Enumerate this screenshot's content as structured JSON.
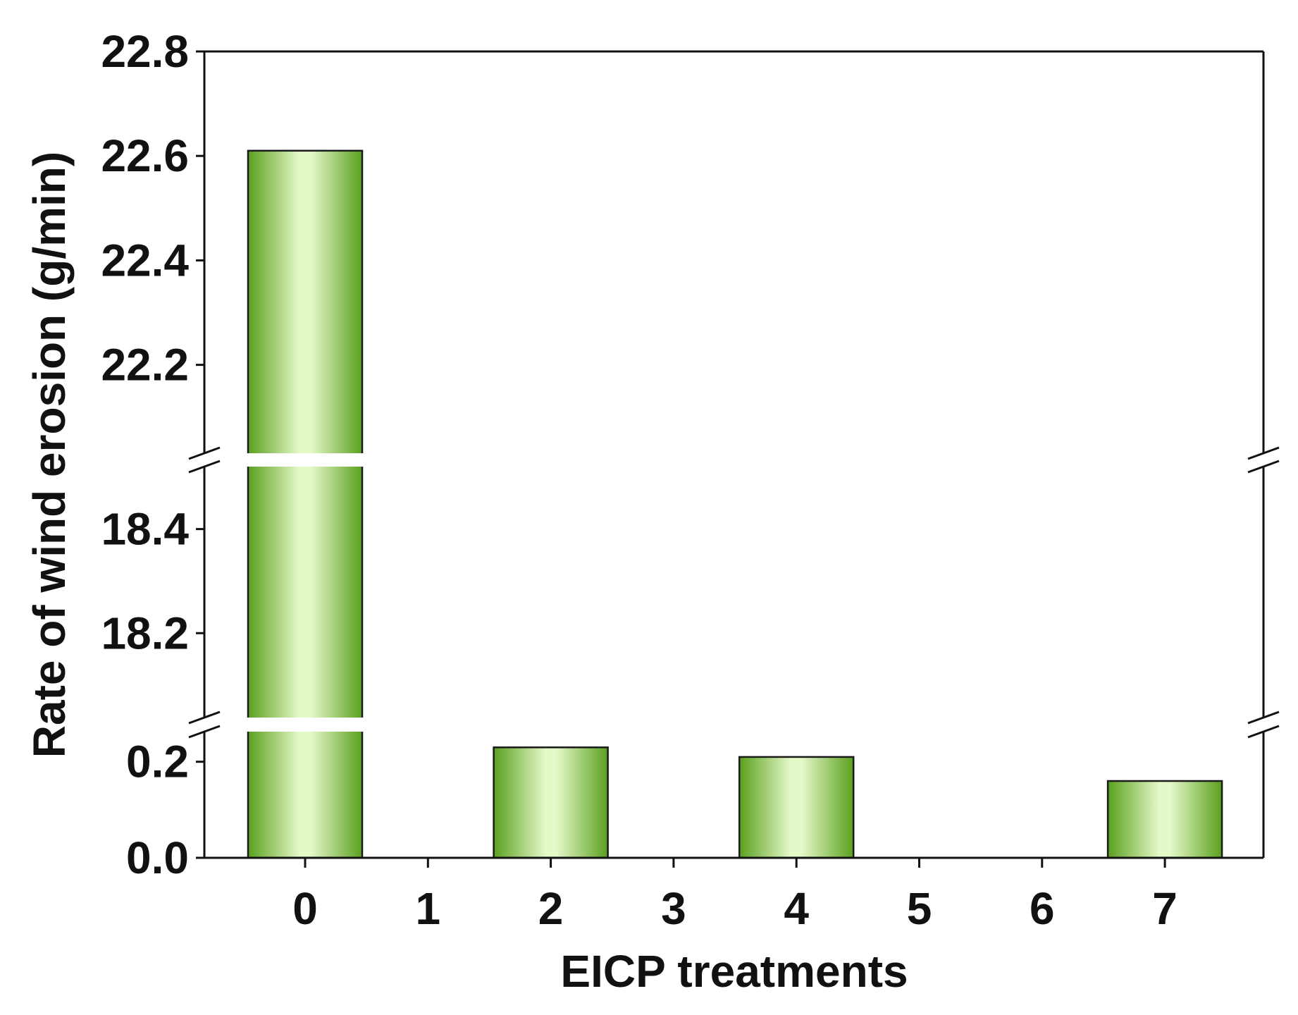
{
  "chart_data": {
    "type": "bar",
    "xlabel": "EICP treatments",
    "ylabel": "Rate of wind erosion (g/min)",
    "categories": [
      "0",
      "1",
      "2",
      "3",
      "4",
      "5",
      "6",
      "7"
    ],
    "values": [
      22.61,
      null,
      0.23,
      null,
      0.21,
      null,
      null,
      0.16
    ],
    "y_axis_broken": true,
    "y_segments": [
      {
        "range": [
          0.0,
          0.27
        ],
        "ticks": [
          "0.0",
          "0.2"
        ]
      },
      {
        "range": [
          18.05,
          18.52
        ],
        "ticks": [
          "18.2",
          "18.4"
        ]
      },
      {
        "range": [
          22.02,
          22.8
        ],
        "ticks": [
          "22.2",
          "22.4",
          "22.6",
          "22.8"
        ]
      }
    ],
    "grid": false,
    "legend": "none",
    "colors": {
      "bar_edge": "#5aa01e",
      "bar_center": "#e4f8c8",
      "bar_outline": "#1a1a1a",
      "axis": "#111111"
    }
  }
}
